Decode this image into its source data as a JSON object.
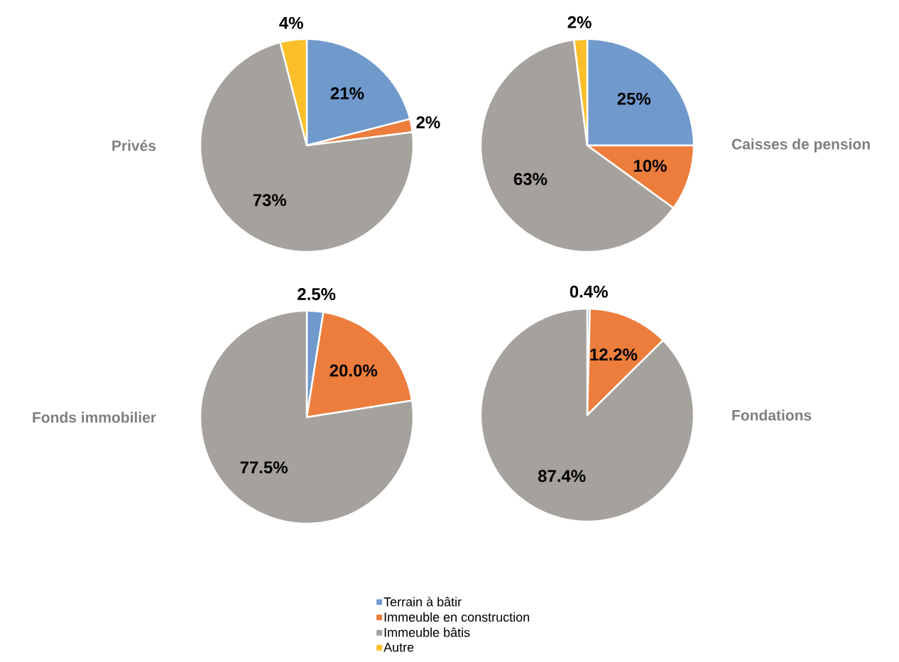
{
  "chart_data": [
    {
      "type": "pie",
      "title": "Privés",
      "categories": [
        null,
        null,
        null,
        null
      ],
      "values": [
        21,
        2,
        73,
        4
      ],
      "value_labels": [
        "21%",
        "2%",
        "73%",
        "4%"
      ],
      "colors": [
        "#7099cc",
        "#ec7d3c",
        "#a5a19d",
        "#fbbf2a"
      ]
    },
    {
      "type": "pie",
      "title": "Caisses de pension",
      "categories": [
        null,
        null,
        null,
        null
      ],
      "values": [
        25,
        10,
        63,
        2
      ],
      "value_labels": [
        "25%",
        "10%",
        "63%",
        "2%"
      ],
      "colors": [
        "#7099cc",
        "#ec7d3c",
        "#a5a19d",
        "#fbbf2a"
      ]
    },
    {
      "type": "pie",
      "title": "Fonds immobilier",
      "categories": [
        null,
        null,
        null,
        null
      ],
      "values": [
        2.5,
        20.0,
        77.5,
        null
      ],
      "value_labels": [
        "2.5%",
        "20.0%",
        "77.5%",
        null
      ],
      "colors": [
        "#7099cc",
        "#ec7d3c",
        "#a5a19d",
        "#fbbf2a"
      ]
    },
    {
      "type": "pie",
      "title": "Fondations",
      "categories": [
        "Terrain à bâtir",
        "Immeuble en construction",
        "Immeuble bâtis",
        "Autre"
      ],
      "values": [
        0.4,
        12.2,
        87.4,
        null
      ],
      "value_labels": [
        "0.4%",
        "12.2%",
        "87.4%",
        null
      ],
      "colors": [
        "#7099cc",
        "#ec7d3c",
        "#a5a19d",
        "#fbbf2a"
      ],
      "legend": "bottom"
    }
  ]
}
